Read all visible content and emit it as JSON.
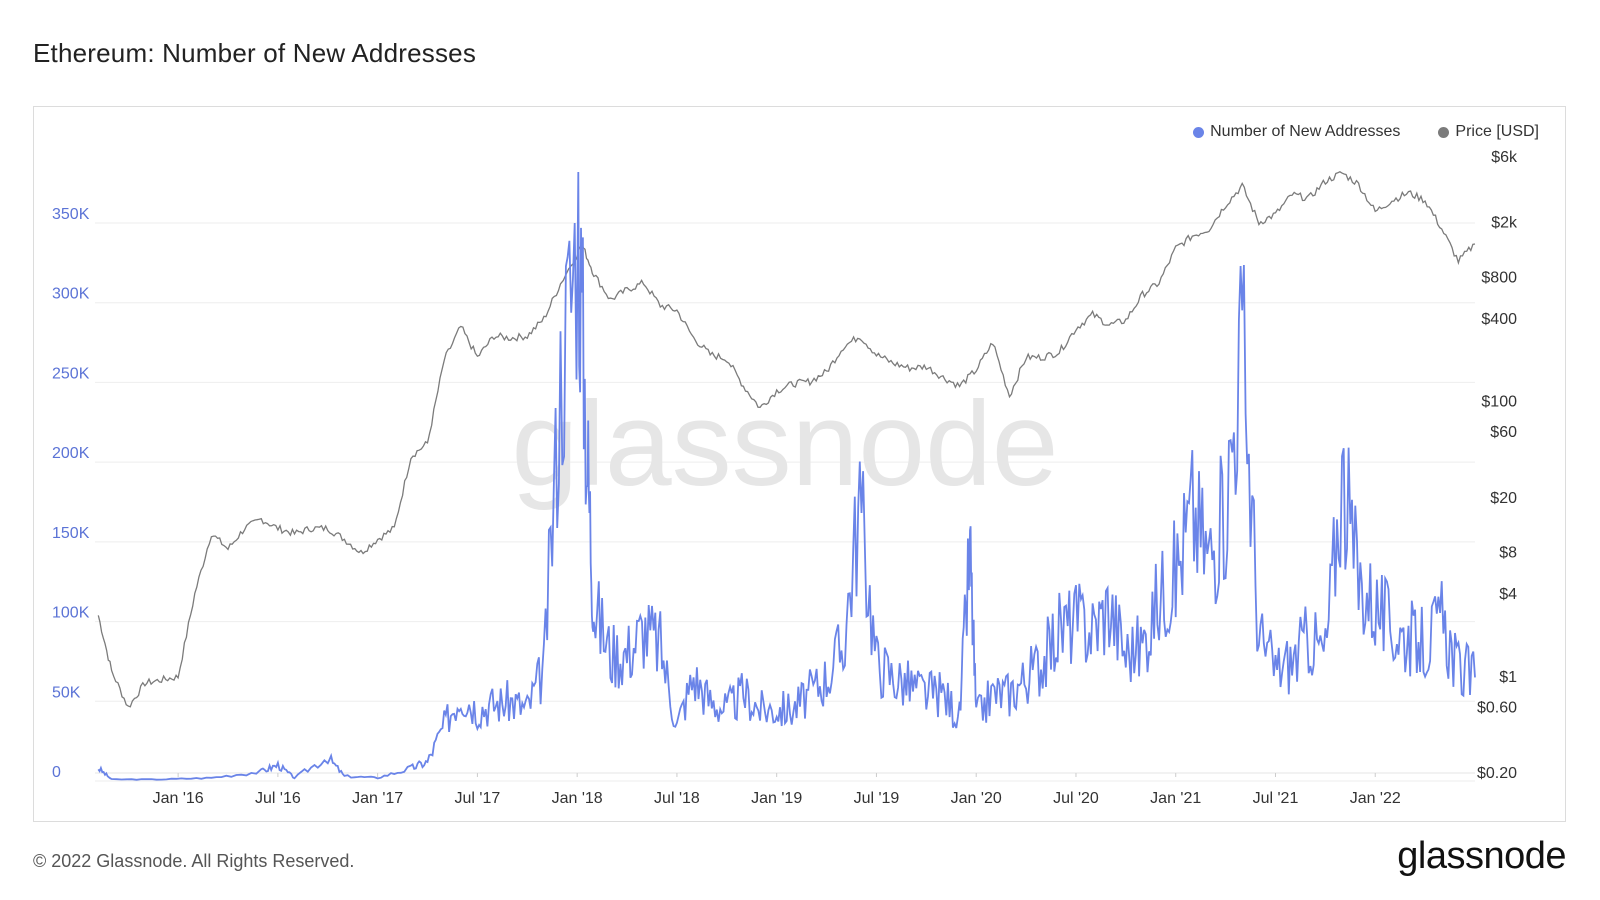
{
  "page": {
    "title": "Ethereum: Number of New Addresses",
    "copyright": "© 2022 Glassnode. All Rights Reserved.",
    "logo": "glassnode",
    "watermark": "glassnode"
  },
  "chart_data": {
    "type": "line",
    "title": "Ethereum: Number of New Addresses",
    "legend_position": "top-right",
    "grid": true,
    "x_ticks": [
      "Jan '16",
      "Jul '16",
      "Jan '17",
      "Jul '17",
      "Jan '18",
      "Jul '18",
      "Jan '19",
      "Jul '19",
      "Jan '20",
      "Jul '20",
      "Jan '21",
      "Jul '21",
      "Jan '22"
    ],
    "x_range": [
      "2015-08",
      "2022-07"
    ],
    "y_left": {
      "scale": "linear",
      "range": [
        0,
        350000
      ],
      "ticks": [
        "0",
        "50K",
        "100K",
        "150K",
        "200K",
        "250K",
        "300K",
        "350K"
      ]
    },
    "y_right": {
      "scale": "log",
      "range": [
        0.2,
        6000
      ],
      "ticks": [
        "$0.20",
        "$0.60",
        "$1",
        "$4",
        "$8",
        "$20",
        "$60",
        "$100",
        "$400",
        "$800",
        "$2k",
        "$6k"
      ]
    },
    "series": [
      {
        "name": "Number of New Addresses",
        "axis": "left",
        "color": "#6a84e8",
        "points": [
          [
            "2015-08-07",
            8000
          ],
          [
            "2015-09",
            1000
          ],
          [
            "2015-12",
            1000
          ],
          [
            "2016-03",
            2000
          ],
          [
            "2016-06",
            6000
          ],
          [
            "2016-07",
            10000
          ],
          [
            "2016-08",
            2000
          ],
          [
            "2016-10",
            15000
          ],
          [
            "2016-11",
            3000
          ],
          [
            "2017-01",
            2000
          ],
          [
            "2017-03",
            8000
          ],
          [
            "2017-04",
            12000
          ],
          [
            "2017-05",
            35000
          ],
          [
            "2017-06",
            55000
          ],
          [
            "2017-07",
            45000
          ],
          [
            "2017-08",
            48000
          ],
          [
            "2017-09",
            50000
          ],
          [
            "2017-10",
            45000
          ],
          [
            "2017-11",
            70000
          ],
          [
            "2017-12",
            250000
          ],
          [
            "2018-01-03",
            350000
          ],
          [
            "2018-01-20",
            200000
          ],
          [
            "2018-02",
            110000
          ],
          [
            "2018-03",
            80000
          ],
          [
            "2018-04",
            80000
          ],
          [
            "2018-05",
            95000
          ],
          [
            "2018-06",
            85000
          ],
          [
            "2018-07",
            35000
          ],
          [
            "2018-08",
            65000
          ],
          [
            "2018-09",
            50000
          ],
          [
            "2018-10",
            45000
          ],
          [
            "2018-11",
            55000
          ],
          [
            "2018-12",
            45000
          ],
          [
            "2019-01",
            45000
          ],
          [
            "2019-02",
            45000
          ],
          [
            "2019-03",
            55000
          ],
          [
            "2019-04",
            65000
          ],
          [
            "2019-05",
            85000
          ],
          [
            "2019-06",
            175000
          ],
          [
            "2019-07",
            75000
          ],
          [
            "2019-08",
            65000
          ],
          [
            "2019-09",
            60000
          ],
          [
            "2019-10",
            55000
          ],
          [
            "2019-11",
            55000
          ],
          [
            "2019-12",
            40000
          ],
          [
            "2019-12-20",
            145000
          ],
          [
            "2020-01",
            40000
          ],
          [
            "2020-02",
            55000
          ],
          [
            "2020-03",
            55000
          ],
          [
            "2020-04",
            65000
          ],
          [
            "2020-05",
            75000
          ],
          [
            "2020-06",
            95000
          ],
          [
            "2020-07",
            100000
          ],
          [
            "2020-08",
            95000
          ],
          [
            "2020-09",
            110000
          ],
          [
            "2020-10",
            80000
          ],
          [
            "2020-11",
            85000
          ],
          [
            "2020-12",
            115000
          ],
          [
            "2021-01",
            130000
          ],
          [
            "2021-02",
            170000
          ],
          [
            "2021-03",
            140000
          ],
          [
            "2021-04",
            170000
          ],
          [
            "2021-05",
            280000
          ],
          [
            "2021-06",
            90000
          ],
          [
            "2021-07",
            70000
          ],
          [
            "2021-08",
            75000
          ],
          [
            "2021-09",
            90000
          ],
          [
            "2021-10",
            80000
          ],
          [
            "2021-11",
            190000
          ],
          [
            "2021-12",
            125000
          ],
          [
            "2022-01",
            110000
          ],
          [
            "2022-02",
            95000
          ],
          [
            "2022-03",
            90000
          ],
          [
            "2022-04",
            85000
          ],
          [
            "2022-05",
            100000
          ],
          [
            "2022-06",
            70000
          ],
          [
            "2022-07",
            65000
          ]
        ]
      },
      {
        "name": "Price [USD]",
        "axis": "right",
        "color": "#7b7b7b",
        "points": [
          [
            "2015-08-07",
            2.8
          ],
          [
            "2015-09",
            1.1
          ],
          [
            "2015-10",
            0.6
          ],
          [
            "2015-11",
            0.9
          ],
          [
            "2015-12",
            0.95
          ],
          [
            "2016-01",
            1.0
          ],
          [
            "2016-02",
            4.0
          ],
          [
            "2016-03",
            11
          ],
          [
            "2016-04",
            8.5
          ],
          [
            "2016-05",
            12
          ],
          [
            "2016-06",
            14
          ],
          [
            "2016-07",
            12
          ],
          [
            "2016-08",
            11
          ],
          [
            "2016-09",
            12
          ],
          [
            "2016-10",
            12
          ],
          [
            "2016-11",
            10
          ],
          [
            "2016-12",
            8
          ],
          [
            "2017-01",
            10
          ],
          [
            "2017-02",
            12
          ],
          [
            "2017-03",
            40
          ],
          [
            "2017-04",
            50
          ],
          [
            "2017-05",
            200
          ],
          [
            "2017-06",
            350
          ],
          [
            "2017-07",
            210
          ],
          [
            "2017-08",
            300
          ],
          [
            "2017-09",
            290
          ],
          [
            "2017-10",
            300
          ],
          [
            "2017-11",
            400
          ],
          [
            "2017-12",
            720
          ],
          [
            "2018-01-10",
            1380
          ],
          [
            "2018-02",
            850
          ],
          [
            "2018-03",
            550
          ],
          [
            "2018-04",
            650
          ],
          [
            "2018-05",
            730
          ],
          [
            "2018-06",
            500
          ],
          [
            "2018-07",
            460
          ],
          [
            "2018-08",
            290
          ],
          [
            "2018-09",
            220
          ],
          [
            "2018-10",
            205
          ],
          [
            "2018-11",
            130
          ],
          [
            "2018-12",
            90
          ],
          [
            "2019-01",
            120
          ],
          [
            "2019-02",
            135
          ],
          [
            "2019-03",
            140
          ],
          [
            "2019-04",
            165
          ],
          [
            "2019-05",
            250
          ],
          [
            "2019-06",
            300
          ],
          [
            "2019-07",
            220
          ],
          [
            "2019-08",
            190
          ],
          [
            "2019-09",
            175
          ],
          [
            "2019-10",
            180
          ],
          [
            "2019-11",
            150
          ],
          [
            "2019-12",
            130
          ],
          [
            "2020-01",
            170
          ],
          [
            "2020-02",
            270
          ],
          [
            "2020-03",
            110
          ],
          [
            "2020-04",
            210
          ],
          [
            "2020-05",
            210
          ],
          [
            "2020-06",
            230
          ],
          [
            "2020-07",
            340
          ],
          [
            "2020-08",
            430
          ],
          [
            "2020-09",
            360
          ],
          [
            "2020-10",
            390
          ],
          [
            "2020-11",
            600
          ],
          [
            "2020-12",
            730
          ],
          [
            "2021-01",
            1300
          ],
          [
            "2021-02",
            1600
          ],
          [
            "2021-03",
            1800
          ],
          [
            "2021-04",
            2700
          ],
          [
            "2021-05",
            3700
          ],
          [
            "2021-06",
            2000
          ],
          [
            "2021-07",
            2300
          ],
          [
            "2021-08",
            3200
          ],
          [
            "2021-09",
            3000
          ],
          [
            "2021-10",
            4000
          ],
          [
            "2021-11",
            4600
          ],
          [
            "2021-12",
            3800
          ],
          [
            "2022-01",
            2400
          ],
          [
            "2022-02",
            2900
          ],
          [
            "2022-03",
            3300
          ],
          [
            "2022-04",
            2900
          ],
          [
            "2022-05",
            1800
          ],
          [
            "2022-06",
            1050
          ],
          [
            "2022-07",
            1400
          ]
        ]
      }
    ]
  }
}
